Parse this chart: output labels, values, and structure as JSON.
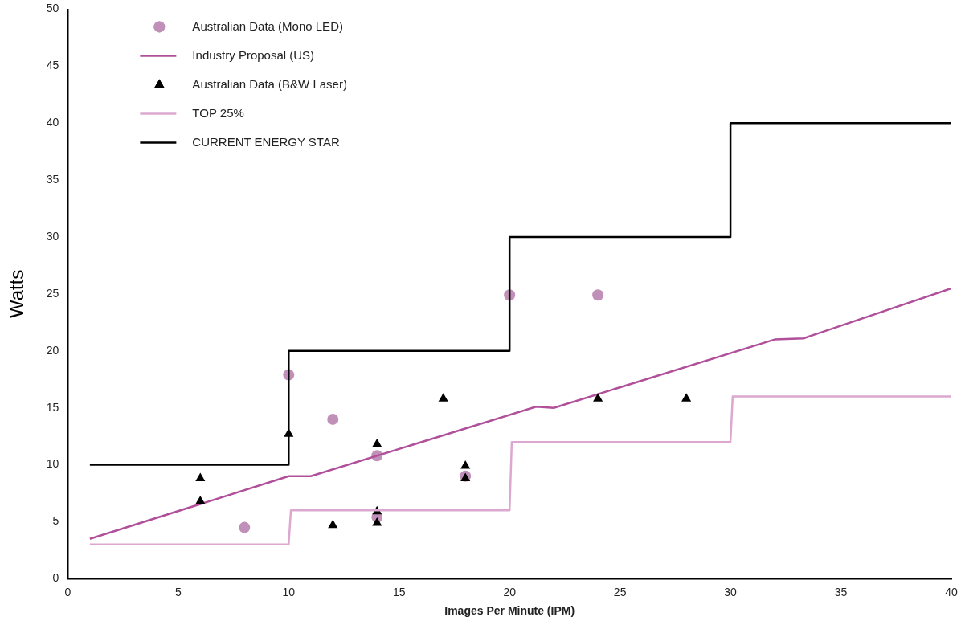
{
  "chart_data": {
    "type": "scatter",
    "xlabel": "Images Per Minute (IPM)",
    "ylabel": "Watts",
    "xlim": [
      0,
      40
    ],
    "xticks": [
      0,
      5,
      10,
      15,
      20,
      25,
      30,
      35,
      40
    ],
    "ylim": [
      0,
      50
    ],
    "yticks": [
      0,
      5,
      10,
      15,
      20,
      25,
      30,
      35,
      40,
      45,
      50
    ],
    "grid": false,
    "legend": "top left",
    "series": [
      {
        "name": "Australian Data (Mono LED)",
        "type": "scatter",
        "marker": "circle",
        "color": "#c090b8",
        "x": [
          8,
          10,
          12,
          14,
          14,
          18,
          20,
          24
        ],
        "values": [
          4.5,
          17.9,
          14,
          10.8,
          5.4,
          9,
          24.9,
          24.9
        ]
      },
      {
        "name": "Industry Proposal (US)",
        "type": "line",
        "marker": "none",
        "color": "#b0509a",
        "x": [
          1,
          10,
          11,
          21.2,
          22,
          32,
          33.3,
          40
        ],
        "values": [
          3.5,
          9,
          9,
          15.1,
          15,
          21,
          21.1,
          25.5
        ]
      },
      {
        "name": "Australian Data (B&W Laser)",
        "type": "scatter",
        "marker": "triangle",
        "color": "#000000",
        "x": [
          6,
          6,
          10,
          12,
          14,
          14,
          14,
          17,
          18,
          18,
          24,
          28
        ],
        "values": [
          8.8,
          6.8,
          12.7,
          4.7,
          11.8,
          5.9,
          4.9,
          15.8,
          9.9,
          8.8,
          15.8,
          15.8
        ]
      },
      {
        "name": "TOP 25%",
        "type": "line",
        "marker": "none",
        "color": "#dca8d0",
        "x": [
          1,
          10,
          10.1,
          20,
          20.1,
          30,
          30.1,
          40
        ],
        "values": [
          3,
          3,
          6,
          6,
          12,
          12,
          16,
          16
        ]
      },
      {
        "name": "CURRENT ENERGY STAR",
        "type": "line",
        "marker": "none",
        "color": "#000000",
        "x": [
          1,
          10,
          10,
          20,
          20,
          30,
          30,
          40
        ],
        "values": [
          10,
          10,
          20,
          20,
          30,
          30,
          40,
          40
        ]
      }
    ]
  }
}
